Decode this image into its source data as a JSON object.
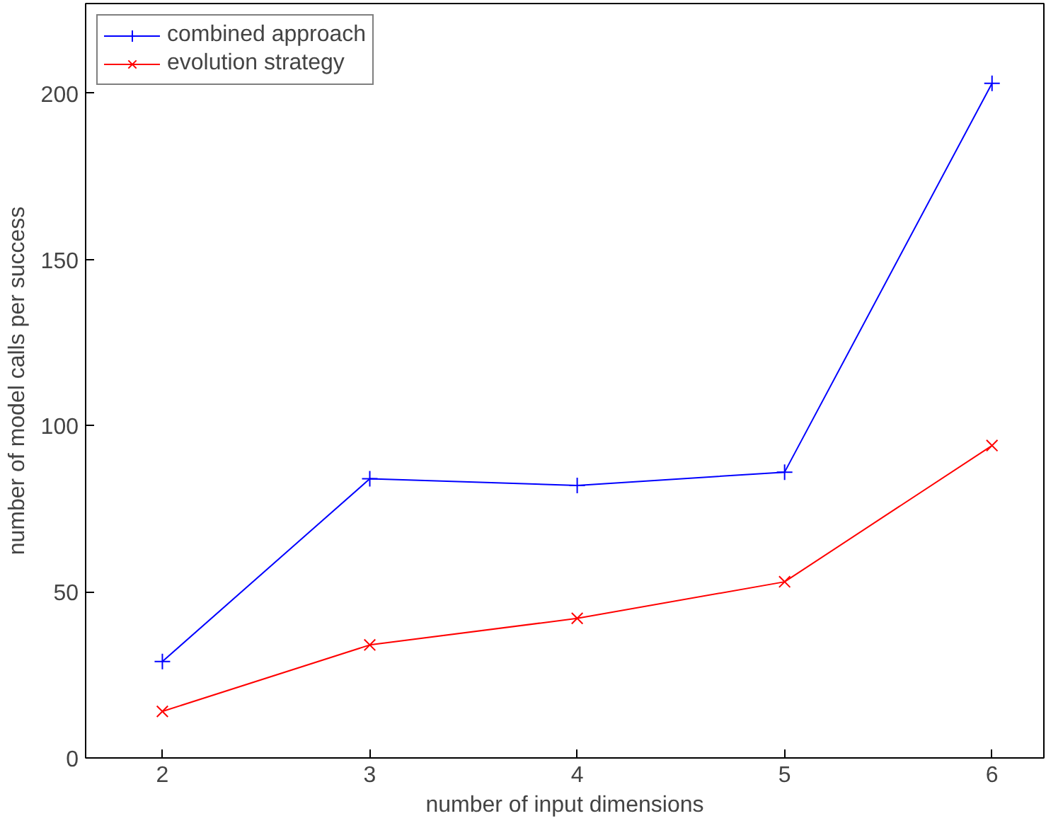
{
  "chart_data": {
    "type": "line",
    "xlabel": "number of input dimensions",
    "ylabel": "number of model calls per success",
    "x": [
      2,
      3,
      4,
      5,
      6
    ],
    "series": [
      {
        "name": "combined approach",
        "color": "#0000ff",
        "values": [
          29,
          84,
          82,
          86,
          203
        ],
        "marker": "cross"
      },
      {
        "name": "evolution strategy",
        "color": "#ff0000",
        "values": [
          14,
          34,
          42,
          53,
          94
        ],
        "marker": "x"
      }
    ],
    "xlim": [
      1.63,
      6.25
    ],
    "xticks": [
      2,
      3,
      4,
      5,
      6
    ],
    "ylim": [
      0,
      227
    ],
    "yticks": [
      0,
      50,
      100,
      150,
      200
    ],
    "legend": "top left",
    "grid": false,
    "line_style": "solid"
  }
}
